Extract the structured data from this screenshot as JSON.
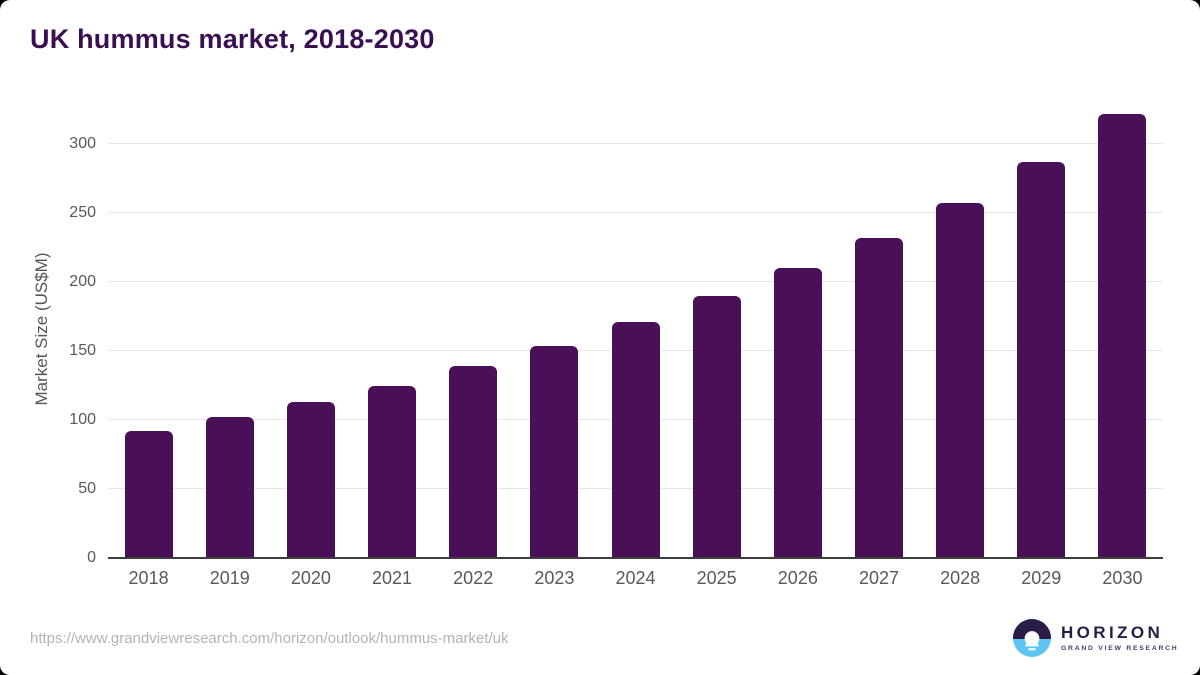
{
  "title": "UK hummus market, 2018-2030",
  "source_url": "https://www.grandviewresearch.com/horizon/outlook/hummus-market/uk",
  "logo": {
    "name": "HORIZON",
    "subtitle": "GRAND VIEW RESEARCH",
    "mark": "horizon-sun-circle-icon"
  },
  "colors": {
    "bar": "#4a1057",
    "title": "#3a0e52",
    "axis_text": "#595959",
    "gridline": "#e6e6e6",
    "axis_line": "#3d3d3d",
    "url_text": "#b3b3b3",
    "logo_dark": "#2b1b47",
    "logo_blue": "#5ec5f2"
  },
  "chart_data": {
    "type": "bar",
    "title": "UK hummus market, 2018-2030",
    "categories": [
      "2018",
      "2019",
      "2020",
      "2021",
      "2022",
      "2023",
      "2024",
      "2025",
      "2026",
      "2027",
      "2028",
      "2029",
      "2030"
    ],
    "values": [
      92,
      102,
      113,
      125,
      139,
      154,
      171,
      190,
      210,
      232,
      257,
      287,
      322
    ],
    "xlabel": "",
    "ylabel": "Market Size (US$M)",
    "yticks": [
      0,
      50,
      100,
      150,
      200,
      250,
      300
    ],
    "ylim": [
      0,
      332
    ],
    "grid": true,
    "legend": false
  }
}
